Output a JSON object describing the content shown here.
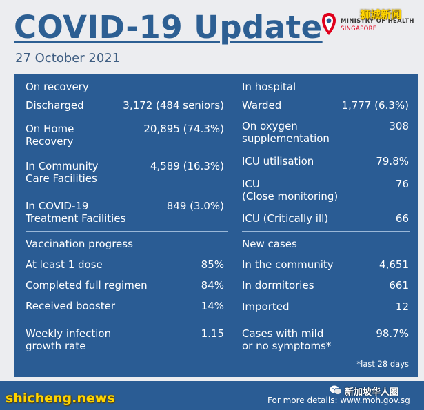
{
  "header": {
    "title": "COVID-19 Update",
    "date": "27 October 2021",
    "org_line1": "MINISTRY OF HEALTH",
    "org_line2": "SINGAPORE",
    "watermark_top": "狮城新闻"
  },
  "recovery": {
    "heading": "On recovery",
    "rows": [
      {
        "label1": "Discharged",
        "label2": "",
        "value": "3,172 (484 seniors)"
      },
      {
        "label1": "On Home",
        "label2": "Recovery",
        "value": "20,895 (74.3%)"
      },
      {
        "label1": "In Community",
        "label2": "Care Facilities",
        "value": "4,589 (16.3%)"
      },
      {
        "label1": "In COVID-19",
        "label2": "Treatment Facilities",
        "value": "849 (3.0%)"
      }
    ]
  },
  "hospital": {
    "heading": "In hospital",
    "rows": [
      {
        "label1": "Warded",
        "label2": "",
        "value": "1,777 (6.3%)"
      },
      {
        "label1": "On oxygen",
        "label2": "supplementation",
        "value": "308"
      },
      {
        "label1": "ICU utilisation",
        "label2": "",
        "value": "79.8%"
      },
      {
        "label1": "ICU",
        "label2": "(Close monitoring)",
        "value": "76"
      },
      {
        "label1": "ICU (Critically ill)",
        "label2": "",
        "value": "66"
      }
    ]
  },
  "vaccination": {
    "heading": "Vaccination progress",
    "rows": [
      {
        "label": "At least 1 dose",
        "value": "85%"
      },
      {
        "label": "Completed full regimen",
        "value": "84%"
      },
      {
        "label": "Received booster",
        "value": "14%"
      }
    ]
  },
  "new_cases": {
    "heading": "New cases",
    "rows": [
      {
        "label": "In the community",
        "value": "4,651"
      },
      {
        "label": "In dormitories",
        "value": "661"
      },
      {
        "label": "Imported",
        "value": "12"
      }
    ]
  },
  "weekly": {
    "label1": "Weekly infection",
    "label2": "growth rate",
    "value": "1.15"
  },
  "mild": {
    "label1": "Cases with mild",
    "label2": "or no symptoms*",
    "value": "98.7%",
    "note": "*last 28 days"
  },
  "footer": {
    "details": "For more details: www.moh.gov.sg",
    "watermark_bottom": "shicheng.news",
    "wechat_label": "新加坡华人圈"
  },
  "colors": {
    "panel": "#2a5c94",
    "title": "#2d5f93",
    "watermark": "#ffd400"
  }
}
